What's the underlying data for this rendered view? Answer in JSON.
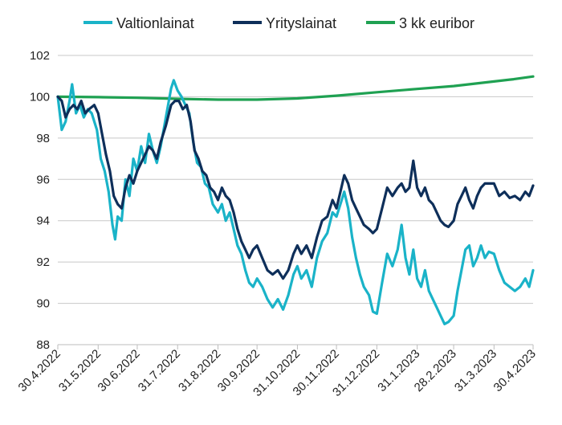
{
  "chart_data": {
    "type": "line",
    "title": "",
    "xlabel": "",
    "ylabel": "",
    "ylim": [
      88,
      102
    ],
    "yticks": [
      88,
      90,
      92,
      94,
      96,
      98,
      100,
      102
    ],
    "xlim": [
      "2022-04-30",
      "2023-04-30"
    ],
    "xticks": [
      {
        "date": "2022-04-30",
        "label": "30.4.2022"
      },
      {
        "date": "2022-05-31",
        "label": "31.5.2022"
      },
      {
        "date": "2022-06-30",
        "label": "30.6.2022"
      },
      {
        "date": "2022-07-31",
        "label": "31.7.2022"
      },
      {
        "date": "2022-08-31",
        "label": "31.8.2022"
      },
      {
        "date": "2022-09-30",
        "label": "30.9.2022"
      },
      {
        "date": "2022-10-31",
        "label": "31.10.2022"
      },
      {
        "date": "2022-11-30",
        "label": "30.11.2022"
      },
      {
        "date": "2022-12-31",
        "label": "31.12.2022"
      },
      {
        "date": "2023-01-31",
        "label": "31.1.2023"
      },
      {
        "date": "2023-02-28",
        "label": "28.2.2023"
      },
      {
        "date": "2023-03-31",
        "label": "31.3.2023"
      },
      {
        "date": "2023-04-30",
        "label": "30.4.2023"
      }
    ],
    "grid": "horizontal",
    "legend_position": "top",
    "series": [
      {
        "name": "Valtionlainat",
        "color": "#1ab3c8",
        "points": [
          [
            "2022-04-30",
            100.0
          ],
          [
            "2022-05-03",
            98.4
          ],
          [
            "2022-05-06",
            98.8
          ],
          [
            "2022-05-09",
            99.8
          ],
          [
            "2022-05-11",
            100.6
          ],
          [
            "2022-05-14",
            99.2
          ],
          [
            "2022-05-17",
            99.6
          ],
          [
            "2022-05-20",
            99.0
          ],
          [
            "2022-05-23",
            99.4
          ],
          [
            "2022-05-26",
            99.2
          ],
          [
            "2022-05-30",
            98.4
          ],
          [
            "2022-06-02",
            97.0
          ],
          [
            "2022-06-05",
            96.4
          ],
          [
            "2022-06-08",
            95.4
          ],
          [
            "2022-06-11",
            93.8
          ],
          [
            "2022-06-13",
            93.1
          ],
          [
            "2022-06-15",
            94.2
          ],
          [
            "2022-06-18",
            94.0
          ],
          [
            "2022-06-21",
            96.0
          ],
          [
            "2022-06-24",
            95.2
          ],
          [
            "2022-06-27",
            97.0
          ],
          [
            "2022-06-30",
            96.4
          ],
          [
            "2022-07-03",
            97.6
          ],
          [
            "2022-07-06",
            96.8
          ],
          [
            "2022-07-09",
            98.2
          ],
          [
            "2022-07-12",
            97.4
          ],
          [
            "2022-07-15",
            96.8
          ],
          [
            "2022-07-18",
            97.6
          ],
          [
            "2022-07-22",
            99.0
          ],
          [
            "2022-07-26",
            100.4
          ],
          [
            "2022-07-28",
            100.8
          ],
          [
            "2022-07-31",
            100.3
          ],
          [
            "2022-08-03",
            100.0
          ],
          [
            "2022-08-06",
            99.6
          ],
          [
            "2022-08-09",
            99.2
          ],
          [
            "2022-08-12",
            97.8
          ],
          [
            "2022-08-15",
            96.8
          ],
          [
            "2022-08-18",
            96.6
          ],
          [
            "2022-08-21",
            95.8
          ],
          [
            "2022-08-24",
            95.6
          ],
          [
            "2022-08-27",
            94.8
          ],
          [
            "2022-08-31",
            94.4
          ],
          [
            "2022-09-03",
            94.8
          ],
          [
            "2022-09-06",
            94.0
          ],
          [
            "2022-09-09",
            94.4
          ],
          [
            "2022-09-12",
            93.6
          ],
          [
            "2022-09-15",
            92.8
          ],
          [
            "2022-09-18",
            92.4
          ],
          [
            "2022-09-21",
            91.6
          ],
          [
            "2022-09-24",
            91.0
          ],
          [
            "2022-09-27",
            90.8
          ],
          [
            "2022-09-30",
            91.2
          ],
          [
            "2022-10-04",
            90.8
          ],
          [
            "2022-10-08",
            90.2
          ],
          [
            "2022-10-12",
            89.8
          ],
          [
            "2022-10-16",
            90.2
          ],
          [
            "2022-10-20",
            89.7
          ],
          [
            "2022-10-24",
            90.4
          ],
          [
            "2022-10-28",
            91.4
          ],
          [
            "2022-10-31",
            91.8
          ],
          [
            "2022-11-03",
            91.2
          ],
          [
            "2022-11-07",
            91.6
          ],
          [
            "2022-11-11",
            90.8
          ],
          [
            "2022-11-15",
            92.2
          ],
          [
            "2022-11-19",
            93.0
          ],
          [
            "2022-11-23",
            93.4
          ],
          [
            "2022-11-27",
            94.4
          ],
          [
            "2022-11-30",
            94.2
          ],
          [
            "2022-12-03",
            94.8
          ],
          [
            "2022-12-06",
            95.4
          ],
          [
            "2022-12-09",
            94.6
          ],
          [
            "2022-12-12",
            93.2
          ],
          [
            "2022-12-15",
            92.2
          ],
          [
            "2022-12-18",
            91.4
          ],
          [
            "2022-12-21",
            90.8
          ],
          [
            "2022-12-25",
            90.4
          ],
          [
            "2022-12-28",
            89.6
          ],
          [
            "2022-12-31",
            89.5
          ],
          [
            "2023-01-04",
            91.0
          ],
          [
            "2023-01-08",
            92.4
          ],
          [
            "2023-01-12",
            91.8
          ],
          [
            "2023-01-16",
            92.6
          ],
          [
            "2023-01-19",
            93.8
          ],
          [
            "2023-01-22",
            92.2
          ],
          [
            "2023-01-25",
            91.4
          ],
          [
            "2023-01-28",
            92.6
          ],
          [
            "2023-01-31",
            91.2
          ],
          [
            "2023-02-03",
            90.8
          ],
          [
            "2023-02-06",
            91.6
          ],
          [
            "2023-02-09",
            90.6
          ],
          [
            "2023-02-12",
            90.2
          ],
          [
            "2023-02-15",
            89.8
          ],
          [
            "2023-02-18",
            89.4
          ],
          [
            "2023-02-21",
            89.0
          ],
          [
            "2023-02-24",
            89.1
          ],
          [
            "2023-02-28",
            89.4
          ],
          [
            "2023-03-03",
            90.6
          ],
          [
            "2023-03-06",
            91.6
          ],
          [
            "2023-03-09",
            92.6
          ],
          [
            "2023-03-12",
            92.8
          ],
          [
            "2023-03-15",
            91.8
          ],
          [
            "2023-03-18",
            92.2
          ],
          [
            "2023-03-21",
            92.8
          ],
          [
            "2023-03-24",
            92.2
          ],
          [
            "2023-03-27",
            92.5
          ],
          [
            "2023-03-31",
            92.4
          ],
          [
            "2023-04-04",
            91.6
          ],
          [
            "2023-04-08",
            91.0
          ],
          [
            "2023-04-12",
            90.8
          ],
          [
            "2023-04-16",
            90.6
          ],
          [
            "2023-04-20",
            90.8
          ],
          [
            "2023-04-24",
            91.2
          ],
          [
            "2023-04-27",
            90.8
          ],
          [
            "2023-04-30",
            91.6
          ]
        ]
      },
      {
        "name": "Yrityslainat",
        "color": "#0e2f5a",
        "points": [
          [
            "2022-04-30",
            100.0
          ],
          [
            "2022-05-03",
            99.8
          ],
          [
            "2022-05-06",
            99.0
          ],
          [
            "2022-05-09",
            99.4
          ],
          [
            "2022-05-12",
            99.6
          ],
          [
            "2022-05-15",
            99.4
          ],
          [
            "2022-05-18",
            99.8
          ],
          [
            "2022-05-21",
            99.2
          ],
          [
            "2022-05-24",
            99.4
          ],
          [
            "2022-05-28",
            99.6
          ],
          [
            "2022-05-31",
            99.2
          ],
          [
            "2022-06-03",
            98.2
          ],
          [
            "2022-06-06",
            97.2
          ],
          [
            "2022-06-09",
            96.4
          ],
          [
            "2022-06-12",
            95.2
          ],
          [
            "2022-06-15",
            94.8
          ],
          [
            "2022-06-18",
            94.6
          ],
          [
            "2022-06-21",
            95.6
          ],
          [
            "2022-06-24",
            96.2
          ],
          [
            "2022-06-27",
            95.8
          ],
          [
            "2022-06-30",
            96.4
          ],
          [
            "2022-07-03",
            96.8
          ],
          [
            "2022-07-06",
            97.2
          ],
          [
            "2022-07-09",
            97.6
          ],
          [
            "2022-07-12",
            97.4
          ],
          [
            "2022-07-15",
            97.0
          ],
          [
            "2022-07-18",
            97.8
          ],
          [
            "2022-07-22",
            98.6
          ],
          [
            "2022-07-26",
            99.6
          ],
          [
            "2022-07-29",
            99.8
          ],
          [
            "2022-08-01",
            99.8
          ],
          [
            "2022-08-04",
            99.4
          ],
          [
            "2022-08-07",
            99.6
          ],
          [
            "2022-08-10",
            98.8
          ],
          [
            "2022-08-13",
            97.4
          ],
          [
            "2022-08-16",
            97.0
          ],
          [
            "2022-08-19",
            96.4
          ],
          [
            "2022-08-22",
            96.2
          ],
          [
            "2022-08-25",
            95.6
          ],
          [
            "2022-08-28",
            95.4
          ],
          [
            "2022-08-31",
            95.0
          ],
          [
            "2022-09-03",
            95.6
          ],
          [
            "2022-09-06",
            95.2
          ],
          [
            "2022-09-09",
            95.0
          ],
          [
            "2022-09-12",
            94.4
          ],
          [
            "2022-09-15",
            93.6
          ],
          [
            "2022-09-18",
            93.0
          ],
          [
            "2022-09-21",
            92.6
          ],
          [
            "2022-09-24",
            92.2
          ],
          [
            "2022-09-27",
            92.6
          ],
          [
            "2022-09-30",
            92.8
          ],
          [
            "2022-10-04",
            92.2
          ],
          [
            "2022-10-08",
            91.6
          ],
          [
            "2022-10-12",
            91.4
          ],
          [
            "2022-10-16",
            91.6
          ],
          [
            "2022-10-20",
            91.2
          ],
          [
            "2022-10-24",
            91.6
          ],
          [
            "2022-10-28",
            92.4
          ],
          [
            "2022-10-31",
            92.8
          ],
          [
            "2022-11-03",
            92.4
          ],
          [
            "2022-11-07",
            92.8
          ],
          [
            "2022-11-11",
            92.2
          ],
          [
            "2022-11-15",
            93.2
          ],
          [
            "2022-11-19",
            94.0
          ],
          [
            "2022-11-23",
            94.2
          ],
          [
            "2022-11-27",
            95.0
          ],
          [
            "2022-11-30",
            94.6
          ],
          [
            "2022-12-03",
            95.4
          ],
          [
            "2022-12-06",
            96.2
          ],
          [
            "2022-12-09",
            95.8
          ],
          [
            "2022-12-12",
            95.0
          ],
          [
            "2022-12-15",
            94.6
          ],
          [
            "2022-12-18",
            94.2
          ],
          [
            "2022-12-21",
            93.8
          ],
          [
            "2022-12-25",
            93.6
          ],
          [
            "2022-12-28",
            93.4
          ],
          [
            "2022-12-31",
            93.6
          ],
          [
            "2023-01-04",
            94.6
          ],
          [
            "2023-01-08",
            95.6
          ],
          [
            "2023-01-12",
            95.2
          ],
          [
            "2023-01-16",
            95.6
          ],
          [
            "2023-01-19",
            95.8
          ],
          [
            "2023-01-22",
            95.4
          ],
          [
            "2023-01-25",
            95.6
          ],
          [
            "2023-01-28",
            96.9
          ],
          [
            "2023-01-31",
            95.6
          ],
          [
            "2023-02-03",
            95.2
          ],
          [
            "2023-02-06",
            95.6
          ],
          [
            "2023-02-09",
            95.0
          ],
          [
            "2023-02-12",
            94.8
          ],
          [
            "2023-02-15",
            94.4
          ],
          [
            "2023-02-18",
            94.0
          ],
          [
            "2023-02-21",
            93.8
          ],
          [
            "2023-02-24",
            93.7
          ],
          [
            "2023-02-28",
            94.0
          ],
          [
            "2023-03-03",
            94.8
          ],
          [
            "2023-03-06",
            95.2
          ],
          [
            "2023-03-09",
            95.6
          ],
          [
            "2023-03-12",
            95.0
          ],
          [
            "2023-03-15",
            94.6
          ],
          [
            "2023-03-18",
            95.2
          ],
          [
            "2023-03-21",
            95.6
          ],
          [
            "2023-03-24",
            95.8
          ],
          [
            "2023-03-27",
            95.8
          ],
          [
            "2023-03-31",
            95.8
          ],
          [
            "2023-04-04",
            95.2
          ],
          [
            "2023-04-08",
            95.4
          ],
          [
            "2023-04-12",
            95.1
          ],
          [
            "2023-04-16",
            95.2
          ],
          [
            "2023-04-20",
            95.0
          ],
          [
            "2023-04-24",
            95.4
          ],
          [
            "2023-04-27",
            95.2
          ],
          [
            "2023-04-30",
            95.7
          ]
        ]
      },
      {
        "name": "3 kk euribor",
        "color": "#1fa152",
        "points": [
          [
            "2022-04-30",
            100.0
          ],
          [
            "2022-05-31",
            99.98
          ],
          [
            "2022-06-30",
            99.95
          ],
          [
            "2022-07-31",
            99.9
          ],
          [
            "2022-08-31",
            99.86
          ],
          [
            "2022-09-30",
            99.86
          ],
          [
            "2022-10-31",
            99.92
          ],
          [
            "2022-11-30",
            100.05
          ],
          [
            "2022-12-31",
            100.22
          ],
          [
            "2023-01-31",
            100.38
          ],
          [
            "2023-02-28",
            100.52
          ],
          [
            "2023-03-31",
            100.74
          ],
          [
            "2023-04-15",
            100.85
          ],
          [
            "2023-04-30",
            100.98
          ]
        ]
      }
    ]
  }
}
